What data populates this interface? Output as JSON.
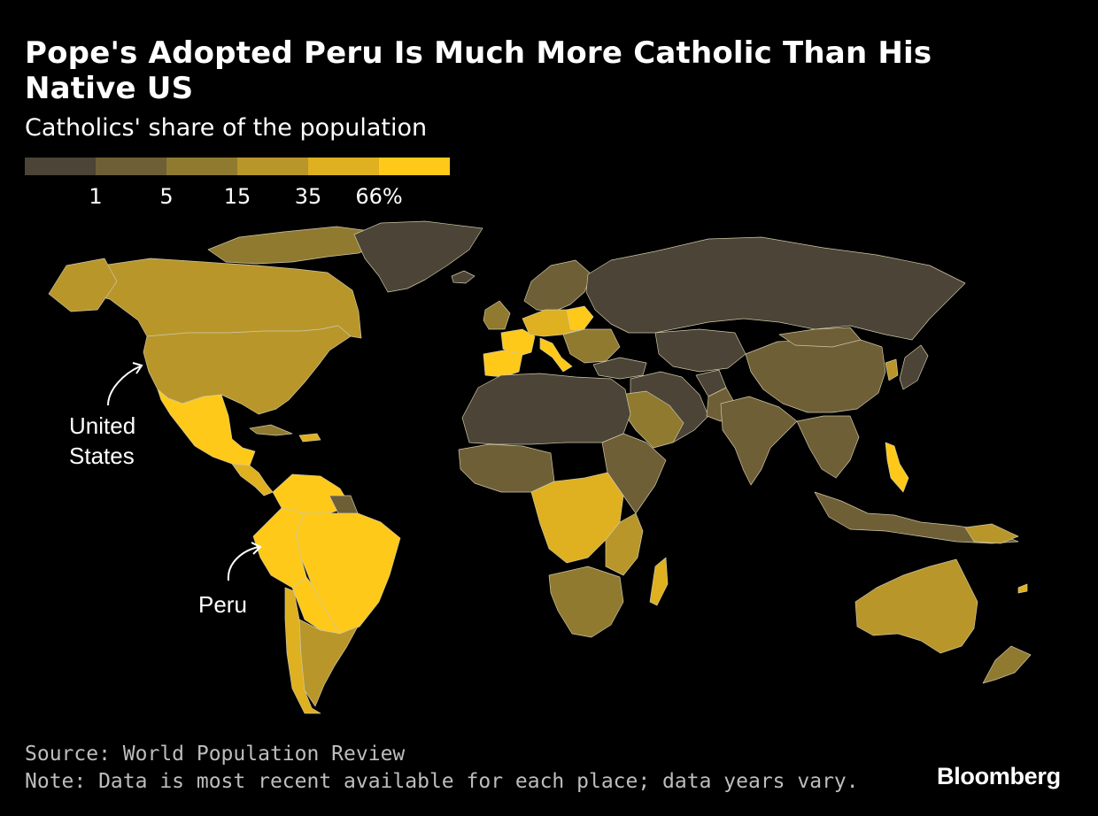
{
  "title": "Pope's Adopted Peru Is Much More Catholic Than His Native US",
  "subtitle": "Catholics' share of the population",
  "legend": {
    "colors": [
      "#4b4437",
      "#6e5f37",
      "#8f7a30",
      "#b8962a",
      "#dfb01f",
      "#ffc91a"
    ],
    "ticks": [
      "1",
      "5",
      "15",
      "35",
      "66%"
    ]
  },
  "callouts": {
    "united_states": "United\nStates",
    "peru": "Peru"
  },
  "source": "Source: World Population Review",
  "note": "Note: Data is most recent available for each place; data years vary.",
  "logo": "Bloomberg",
  "chart_data": {
    "type": "choropleth",
    "measure": "Catholics' share of the population",
    "bins": [
      "<1",
      "1-5",
      "5-15",
      "15-35",
      "35-66",
      ">=66"
    ],
    "highlighted": [
      "United States",
      "Peru"
    ]
  }
}
